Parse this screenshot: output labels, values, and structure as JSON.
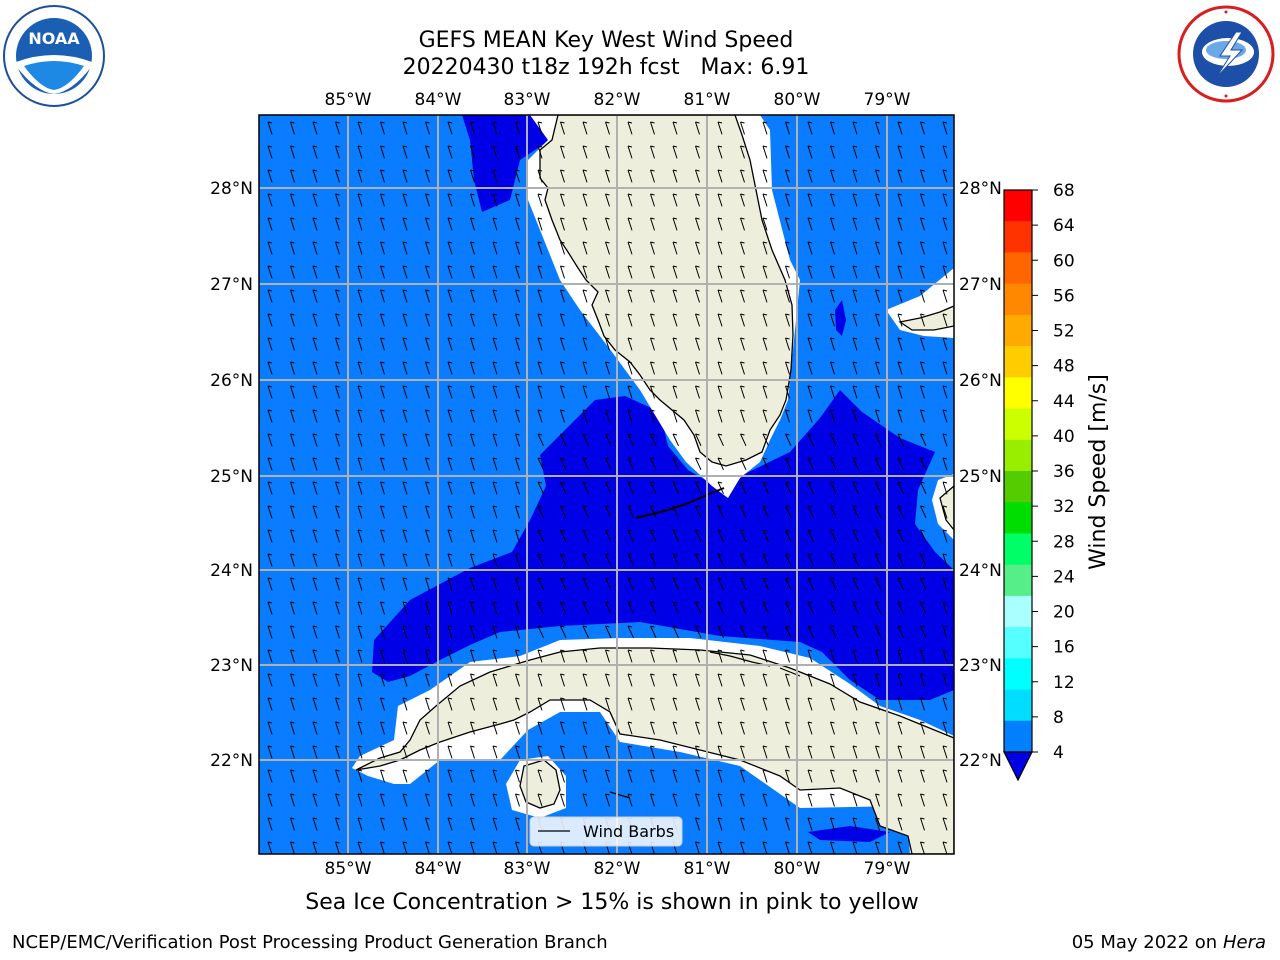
{
  "title_line1": "GEFS MEAN Key West Wind Speed",
  "title_line2": "20220430 t18z 192h fcst   Max: 6.91",
  "logos": {
    "left": "noaa-logo",
    "right": "nws-logo"
  },
  "map": {
    "lon_labels": [
      "85°W",
      "84°W",
      "83°W",
      "82°W",
      "81°W",
      "80°W",
      "79°W"
    ],
    "lat_labels": [
      "28°N",
      "27°N",
      "26°N",
      "25°N",
      "24°N",
      "23°N",
      "22°N"
    ],
    "legend_label": "Wind Barbs",
    "colors": {
      "land": "#eeeedc",
      "level_4_8": "#0a7cff",
      "level_below_4": "#0000e6",
      "grid": "#b0b0b0"
    }
  },
  "colorbar": {
    "label": "Wind Speed [m/s]",
    "ticks": [
      "68",
      "64",
      "60",
      "56",
      "52",
      "48",
      "44",
      "40",
      "36",
      "32",
      "28",
      "24",
      "20",
      "16",
      "12",
      "8",
      "4"
    ],
    "colors_top_to_bottom": [
      "#ff0000",
      "#ff3300",
      "#ff6600",
      "#ff8800",
      "#ffaa00",
      "#ffcc00",
      "#ffff00",
      "#ccff00",
      "#99ee00",
      "#55cc00",
      "#00dd00",
      "#00ff66",
      "#55ee88",
      "#aaffff",
      "#55ffff",
      "#00ffff",
      "#00ddff",
      "#0080ff"
    ],
    "under_color": "#0000e6"
  },
  "caption": "Sea Ice Concentration > 15% is shown in pink to yellow",
  "footer_left": "NCEP/EMC/Verification Post Processing Product Generation Branch",
  "footer_right_date": "05 May 2022 on",
  "footer_right_host": "Hera"
}
